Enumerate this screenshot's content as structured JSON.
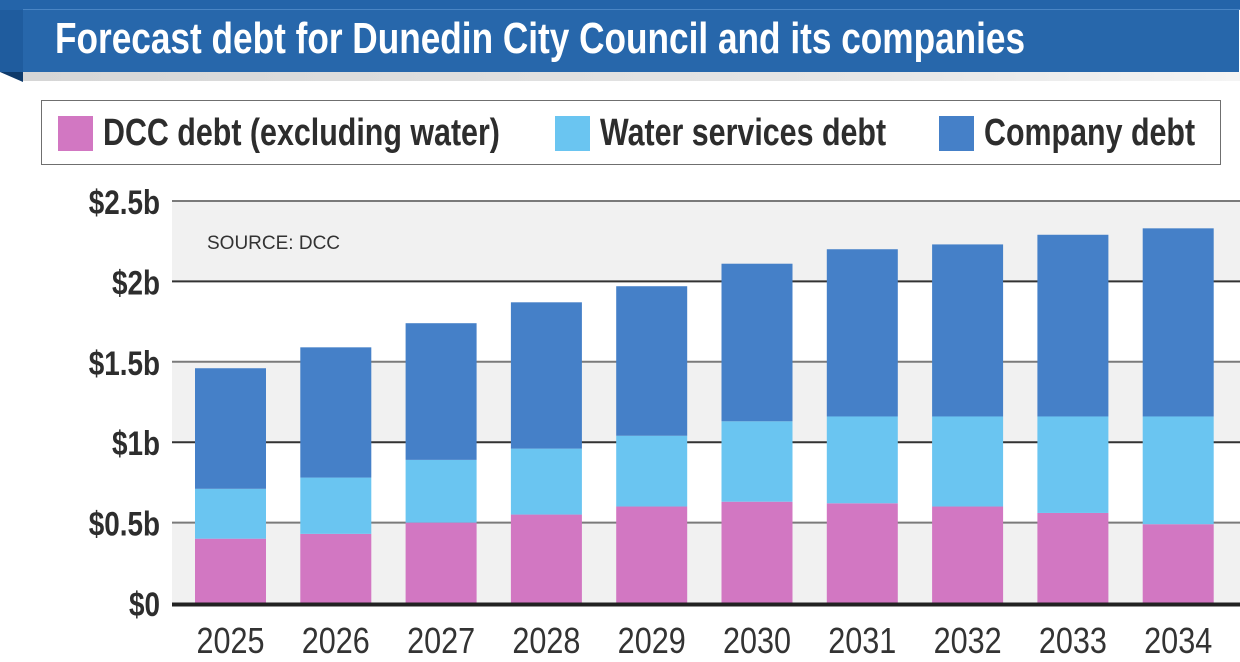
{
  "header": {
    "title": "Forecast debt for Dunedin City Council and its companies"
  },
  "colors": {
    "banner": "#2767ab",
    "dcc": "#d277c2",
    "water": "#6ac5f1",
    "company": "#4580c8",
    "band_gray": "#f1f1f1",
    "band_white": "#ffffff"
  },
  "legend": {
    "items": [
      {
        "label": "DCC debt (excluding water)",
        "color": "#d277c2"
      },
      {
        "label": "Water services debt",
        "color": "#6ac5f1"
      },
      {
        "label": "Company debt",
        "color": "#4580c8"
      }
    ]
  },
  "chart_data": {
    "type": "bar",
    "stacked": true,
    "title": "Forecast debt for Dunedin City Council and its companies",
    "source_note": "SOURCE: DCC",
    "xlabel": "",
    "ylabel": "",
    "unit": "billion NZD",
    "categories": [
      "2025",
      "2026",
      "2027",
      "2028",
      "2029",
      "2030",
      "2031",
      "2032",
      "2033",
      "2034"
    ],
    "series": [
      {
        "name": "DCC debt (excluding water)",
        "color": "#d277c2",
        "values": [
          0.4,
          0.43,
          0.5,
          0.55,
          0.6,
          0.63,
          0.62,
          0.6,
          0.56,
          0.49
        ]
      },
      {
        "name": "Water services debt",
        "color": "#6ac5f1",
        "values": [
          0.31,
          0.35,
          0.39,
          0.41,
          0.44,
          0.5,
          0.54,
          0.56,
          0.6,
          0.67
        ]
      },
      {
        "name": "Company debt",
        "color": "#4580c8",
        "values": [
          0.75,
          0.81,
          0.85,
          0.91,
          0.93,
          0.98,
          1.04,
          1.07,
          1.13,
          1.17
        ]
      }
    ],
    "totals": [
      1.46,
      1.59,
      1.74,
      1.87,
      1.97,
      2.11,
      2.2,
      2.23,
      2.29,
      2.33
    ],
    "ylim": [
      0,
      2.5
    ],
    "yticks": [
      0,
      0.5,
      1,
      1.5,
      2,
      2.5
    ],
    "ytick_labels": [
      "$0",
      "$0.5b",
      "$1b",
      "$1.5b",
      "$2b",
      "$2.5b"
    ],
    "grid": true,
    "legend_position": "top"
  }
}
